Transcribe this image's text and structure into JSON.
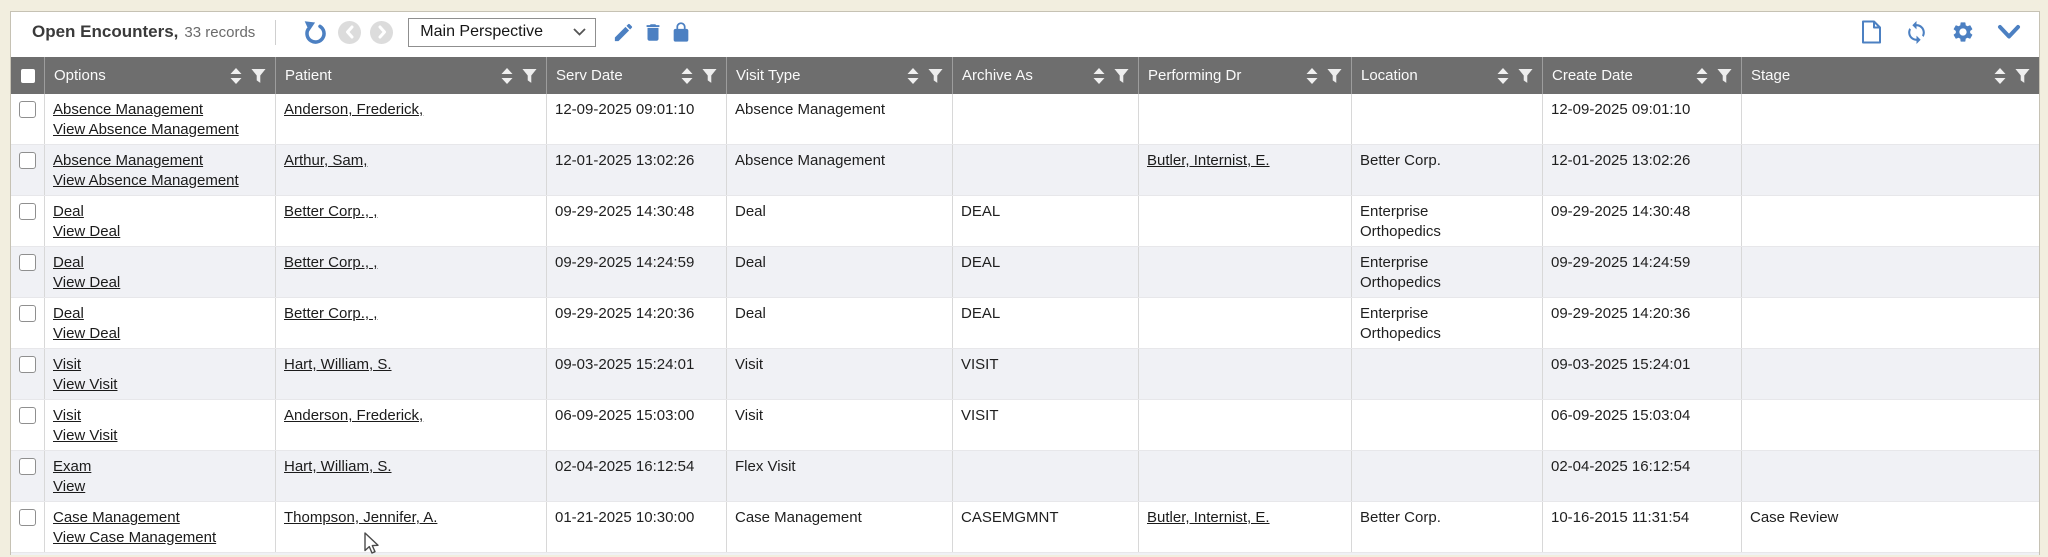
{
  "colors": {
    "page_background": "#f2eedf",
    "accent_blue": "#4c80c2",
    "header_gray": "#6e6e6e",
    "alt_row": "#f0f1f5"
  },
  "toolbar": {
    "title": "Open Encounters,",
    "record_count": "33 records",
    "perspective_value": "Main Perspective"
  },
  "table": {
    "columns": [
      {
        "label": "Options"
      },
      {
        "label": "Patient"
      },
      {
        "label": "Serv Date"
      },
      {
        "label": "Visit Type"
      },
      {
        "label": "Archive As"
      },
      {
        "label": "Performing Dr"
      },
      {
        "label": "Location"
      },
      {
        "label": "Create Date"
      },
      {
        "label": "Stage"
      }
    ],
    "rows": [
      {
        "option_link": "Absence Management",
        "view_link": "View Absence Management",
        "patient": "Anderson, Frederick,",
        "serv_date": "12-09-2025 09:01:10",
        "visit_type": "Absence Management",
        "archive_as": "",
        "performing_dr": "",
        "location": "",
        "create_date": "12-09-2025 09:01:10",
        "stage": ""
      },
      {
        "option_link": "Absence Management",
        "view_link": "View Absence Management",
        "patient": "Arthur, Sam,",
        "serv_date": "12-01-2025 13:02:26",
        "visit_type": "Absence Management",
        "archive_as": "",
        "performing_dr": "Butler, Internist, E.",
        "location": "Better Corp.",
        "create_date": "12-01-2025 13:02:26",
        "stage": ""
      },
      {
        "option_link": "Deal",
        "view_link": "View Deal",
        "patient": "Better Corp., ,",
        "serv_date": "09-29-2025 14:30:48",
        "visit_type": "Deal",
        "archive_as": "DEAL",
        "performing_dr": "",
        "location": "Enterprise Orthopedics",
        "create_date": "09-29-2025 14:30:48",
        "stage": ""
      },
      {
        "option_link": "Deal",
        "view_link": "View Deal",
        "patient": "Better Corp., ,",
        "serv_date": "09-29-2025 14:24:59",
        "visit_type": "Deal",
        "archive_as": "DEAL",
        "performing_dr": "",
        "location": "Enterprise Orthopedics",
        "create_date": "09-29-2025 14:24:59",
        "stage": ""
      },
      {
        "option_link": "Deal",
        "view_link": "View Deal",
        "patient": "Better Corp., ,",
        "serv_date": "09-29-2025 14:20:36",
        "visit_type": "Deal",
        "archive_as": "DEAL",
        "performing_dr": "",
        "location": "Enterprise Orthopedics",
        "create_date": "09-29-2025 14:20:36",
        "stage": ""
      },
      {
        "option_link": "Visit",
        "view_link": "View Visit",
        "patient": "Hart, William, S.",
        "serv_date": "09-03-2025 15:24:01",
        "visit_type": "Visit",
        "archive_as": "VISIT",
        "performing_dr": "",
        "location": "",
        "create_date": "09-03-2025 15:24:01",
        "stage": ""
      },
      {
        "option_link": "Visit",
        "view_link": "View Visit",
        "patient": "Anderson, Frederick,",
        "serv_date": "06-09-2025 15:03:00",
        "visit_type": "Visit",
        "archive_as": "VISIT",
        "performing_dr": "",
        "location": "",
        "create_date": "06-09-2025 15:03:04",
        "stage": ""
      },
      {
        "option_link": "Exam",
        "view_link": "View",
        "patient": "Hart, William, S.",
        "serv_date": "02-04-2025 16:12:54",
        "visit_type": "Flex Visit",
        "archive_as": "",
        "performing_dr": "",
        "location": "",
        "create_date": "02-04-2025 16:12:54",
        "stage": ""
      },
      {
        "option_link": "Case Management",
        "view_link": "View Case Management",
        "patient": "Thompson, Jennifer, A.",
        "serv_date": "01-21-2025 10:30:00",
        "visit_type": "Case Management",
        "archive_as": "CASEMGMNT",
        "performing_dr": "Butler, Internist, E.",
        "location": "Better Corp.",
        "create_date": "10-16-2015 11:31:54",
        "stage": "Case Review"
      }
    ]
  }
}
